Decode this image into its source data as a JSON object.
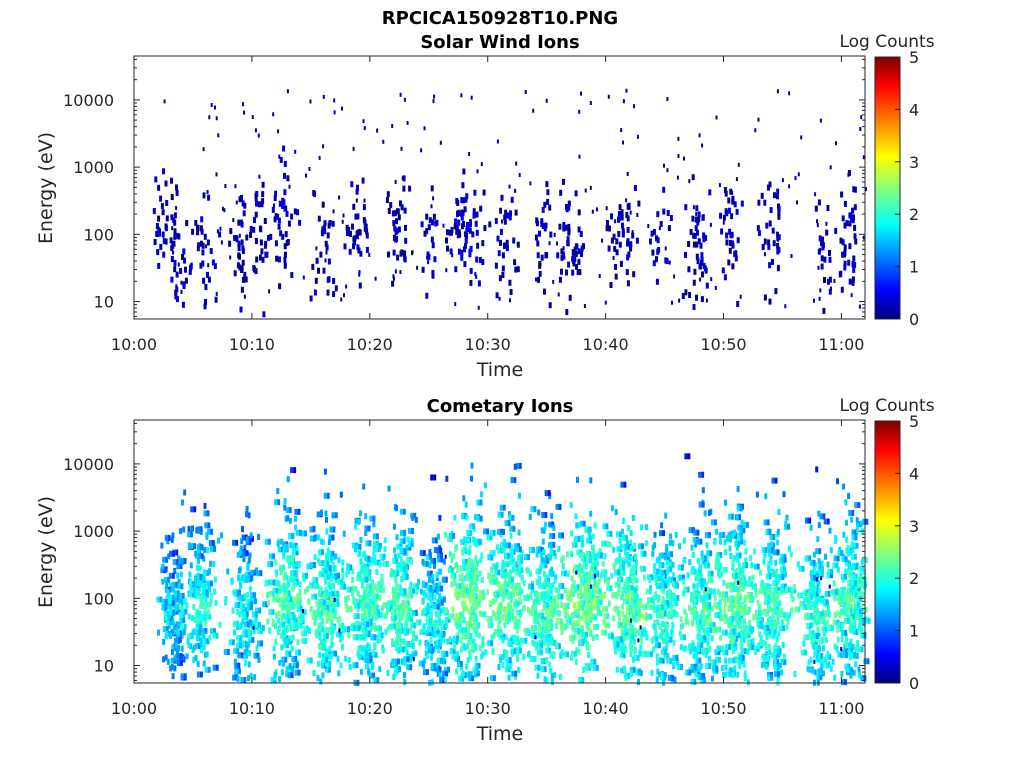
{
  "figure": {
    "title": "RPCICA150928T10.PNG"
  },
  "chart_data": [
    {
      "type": "heatmap",
      "title": "Solar Wind Ions",
      "xlabel": "Time",
      "ylabel": "Energy (eV)",
      "y_scale": "log",
      "ylim": [
        5.5,
        45000
      ],
      "xlim_minutes": [
        0,
        62
      ],
      "x_ticks": [
        "10:00",
        "10:10",
        "10:20",
        "10:30",
        "10:40",
        "10:50",
        "11:00"
      ],
      "y_ticks": [
        "10",
        "100",
        "1000",
        "10000"
      ],
      "colorbar": {
        "label": "Log Counts",
        "range": [
          0,
          5
        ],
        "ticks": [
          "0",
          "1",
          "2",
          "3",
          "4",
          "5"
        ]
      },
      "colormap": [
        "#00007f",
        "#0000ff",
        "#007fff",
        "#00ffff",
        "#7fff7f",
        "#ffff00",
        "#ff7f00",
        "#ff0000",
        "#7f0000"
      ],
      "bursts": [
        {
          "t": 2.2,
          "e": 120,
          "w": 0.6,
          "s": 1.0,
          "n": 25,
          "lv": 0.2
        },
        {
          "t": 3.5,
          "e": 60,
          "w": 1.0,
          "s": 1.4,
          "n": 40,
          "lv": 0.2
        },
        {
          "t": 5.8,
          "e": 70,
          "w": 0.8,
          "s": 1.2,
          "n": 30,
          "lv": 0.2
        },
        {
          "t": 8.8,
          "e": 50,
          "w": 0.5,
          "s": 1.6,
          "n": 30,
          "lv": 0.2
        },
        {
          "t": 10.5,
          "e": 90,
          "w": 0.8,
          "s": 1.2,
          "n": 30,
          "lv": 0.2
        },
        {
          "t": 12.3,
          "e": 130,
          "w": 1.2,
          "s": 1.3,
          "n": 45,
          "lv": 0.2
        },
        {
          "t": 16.0,
          "e": 50,
          "w": 0.8,
          "s": 1.2,
          "n": 30,
          "lv": 0.2
        },
        {
          "t": 18.8,
          "e": 110,
          "w": 1.0,
          "s": 1.0,
          "n": 35,
          "lv": 0.2
        },
        {
          "t": 22.2,
          "e": 120,
          "w": 0.8,
          "s": 1.0,
          "n": 35,
          "lv": 0.2
        },
        {
          "t": 25.0,
          "e": 60,
          "w": 0.6,
          "s": 1.2,
          "n": 20,
          "lv": 0.2
        },
        {
          "t": 28.0,
          "e": 110,
          "w": 1.2,
          "s": 1.0,
          "n": 70,
          "lv": 0.25
        },
        {
          "t": 31.5,
          "e": 70,
          "w": 1.0,
          "s": 1.2,
          "n": 35,
          "lv": 0.2
        },
        {
          "t": 34.5,
          "e": 60,
          "w": 0.8,
          "s": 1.3,
          "n": 30,
          "lv": 0.2
        },
        {
          "t": 37.0,
          "e": 80,
          "w": 1.2,
          "s": 1.2,
          "n": 50,
          "lv": 0.2
        },
        {
          "t": 41.5,
          "e": 80,
          "w": 1.2,
          "s": 1.1,
          "n": 45,
          "lv": 0.2
        },
        {
          "t": 44.5,
          "e": 100,
          "w": 0.8,
          "s": 1.0,
          "n": 20,
          "lv": 0.2
        },
        {
          "t": 47.8,
          "e": 60,
          "w": 1.0,
          "s": 1.4,
          "n": 45,
          "lv": 0.2
        },
        {
          "t": 50.5,
          "e": 120,
          "w": 1.0,
          "s": 1.0,
          "n": 35,
          "lv": 0.2
        },
        {
          "t": 54.0,
          "e": 90,
          "w": 1.0,
          "s": 1.1,
          "n": 35,
          "lv": 0.2
        },
        {
          "t": 58.5,
          "e": 50,
          "w": 0.6,
          "s": 1.0,
          "n": 20,
          "lv": 0.2
        },
        {
          "t": 60.5,
          "e": 110,
          "w": 1.0,
          "s": 1.2,
          "n": 40,
          "lv": 0.2
        }
      ],
      "scatter_count": 230,
      "scatter_energy_range": [
        8,
        14000
      ]
    },
    {
      "type": "heatmap",
      "title": "Cometary Ions",
      "xlabel": "Time",
      "ylabel": "Energy (eV)",
      "y_scale": "log",
      "ylim": [
        5.5,
        45000
      ],
      "xlim_minutes": [
        0,
        62
      ],
      "x_ticks": [
        "10:00",
        "10:10",
        "10:20",
        "10:30",
        "10:40",
        "10:50",
        "11:00"
      ],
      "y_ticks": [
        "10",
        "100",
        "1000",
        "10000"
      ],
      "colorbar": {
        "label": "Log Counts",
        "range": [
          0,
          5
        ],
        "ticks": [
          "0",
          "1",
          "2",
          "3",
          "4",
          "5"
        ]
      },
      "colormap": [
        "#00007f",
        "#0000ff",
        "#007fff",
        "#00ffff",
        "#7fff7f",
        "#ffff00",
        "#ff7f00",
        "#ff0000",
        "#7f0000"
      ],
      "bursts": [
        {
          "t": 3.2,
          "e": 60,
          "w": 0.9,
          "s": 1.9,
          "n": 140,
          "lv": 1.1
        },
        {
          "t": 5.5,
          "e": 70,
          "w": 1.1,
          "s": 2.0,
          "n": 180,
          "lv": 1.4
        },
        {
          "t": 9.2,
          "e": 50,
          "w": 1.0,
          "s": 2.2,
          "n": 170,
          "lv": 1.3
        },
        {
          "t": 12.8,
          "e": 90,
          "w": 1.3,
          "s": 2.0,
          "n": 220,
          "lv": 1.6
        },
        {
          "t": 16.2,
          "e": 60,
          "w": 1.3,
          "s": 2.1,
          "n": 220,
          "lv": 1.6
        },
        {
          "t": 19.5,
          "e": 90,
          "w": 1.3,
          "s": 1.9,
          "n": 220,
          "lv": 1.6
        },
        {
          "t": 22.5,
          "e": 80,
          "w": 1.1,
          "s": 1.8,
          "n": 200,
          "lv": 1.6
        },
        {
          "t": 25.3,
          "e": 45,
          "w": 1.0,
          "s": 2.0,
          "n": 170,
          "lv": 1.3
        },
        {
          "t": 28.2,
          "e": 100,
          "w": 1.4,
          "s": 1.8,
          "n": 260,
          "lv": 1.8
        },
        {
          "t": 31.7,
          "e": 80,
          "w": 1.4,
          "s": 1.9,
          "n": 250,
          "lv": 1.7
        },
        {
          "t": 34.8,
          "e": 55,
          "w": 1.2,
          "s": 2.0,
          "n": 220,
          "lv": 1.6
        },
        {
          "t": 38.3,
          "e": 80,
          "w": 1.5,
          "s": 1.8,
          "n": 260,
          "lv": 1.8
        },
        {
          "t": 41.8,
          "e": 75,
          "w": 1.3,
          "s": 1.8,
          "n": 230,
          "lv": 1.7
        },
        {
          "t": 44.8,
          "e": 60,
          "w": 1.1,
          "s": 1.9,
          "n": 180,
          "lv": 1.5
        },
        {
          "t": 47.9,
          "e": 60,
          "w": 1.3,
          "s": 2.0,
          "n": 220,
          "lv": 1.6
        },
        {
          "t": 51.0,
          "e": 80,
          "w": 1.4,
          "s": 1.9,
          "n": 240,
          "lv": 1.7
        },
        {
          "t": 54.0,
          "e": 70,
          "w": 1.3,
          "s": 1.9,
          "n": 220,
          "lv": 1.6
        },
        {
          "t": 57.8,
          "e": 55,
          "w": 1.2,
          "s": 1.9,
          "n": 200,
          "lv": 1.5
        },
        {
          "t": 60.7,
          "e": 90,
          "w": 1.2,
          "s": 1.8,
          "n": 220,
          "lv": 1.6
        }
      ],
      "scatter_count": 20,
      "scatter_energy_range": [
        10,
        600
      ]
    }
  ]
}
